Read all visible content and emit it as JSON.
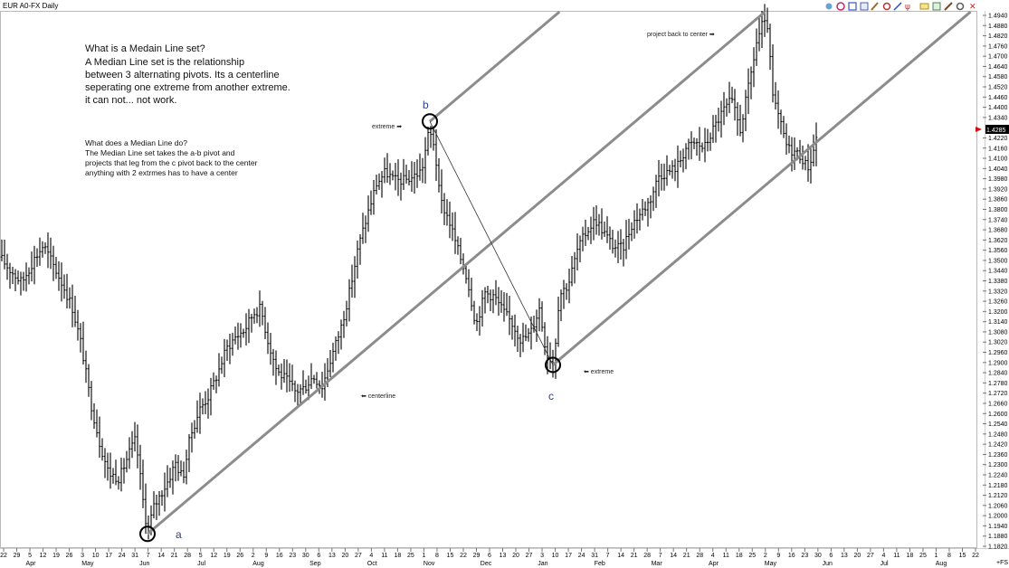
{
  "window": {
    "title": "EUR A0-FX Daily"
  },
  "toolbar": {
    "icons": [
      "cloud-icon",
      "clock-icon",
      "grid-icon",
      "chart-icon",
      "pencil-icon",
      "scissors-icon",
      "trendline-icon",
      "median-line-icon",
      "label-icon",
      "image-icon",
      "pencil-alt-icon",
      "gear-icon",
      "close-icon"
    ]
  },
  "colors": {
    "bars": "#000000",
    "median_lines": "#8c8c8c",
    "pivot_labels": "#2a3f8f",
    "last_price_bg": "#000000",
    "last_price_marker": "#d01010"
  },
  "notes": {
    "block1": [
      "What is a Medain Line set?",
      "A Median Line set is the relationship",
      "between 3 alternating pivots. Its a centerline",
      "seperating one extreme from another extreme.",
      "it can not... not work."
    ],
    "block2": [
      "What does a Median Line do?",
      "The Median Line set takes the a-b pivot and",
      "projects that leg from the c pivot back to the center",
      "anything with 2 extrmes has to have a center"
    ]
  },
  "annotations": {
    "extreme_b": "extreme ➡",
    "centerline": "⬅ centerline",
    "extreme_c": "⬅ extreme",
    "project": "project back to center ➡"
  },
  "corner": {
    "lower_right": "+FS"
  },
  "chart_data": {
    "type": "ohlc-bar",
    "instrument": "EUR A0-FX",
    "timeframe": "Daily",
    "y_axis": {
      "range": [
        1.182,
        1.494
      ],
      "ticks": [
        "1.4940",
        "1.4880",
        "1.4820",
        "1.4760",
        "1.4700",
        "1.4640",
        "1.4580",
        "1.4520",
        "1.4460",
        "1.4400",
        "1.4340",
        "1.4220",
        "1.4160",
        "1.4100",
        "1.4040",
        "1.3980",
        "1.3920",
        "1.3860",
        "1.3800",
        "1.3740",
        "1.3680",
        "1.3620",
        "1.3560",
        "1.3500",
        "1.3440",
        "1.3380",
        "1.3320",
        "1.3260",
        "1.3200",
        "1.3140",
        "1.3080",
        "1.3020",
        "1.2960",
        "1.2900",
        "1.2840",
        "1.2780",
        "1.2720",
        "1.2660",
        "1.2600",
        "1.2540",
        "1.2480",
        "1.2420",
        "1.2360",
        "1.2300",
        "1.2240",
        "1.2180",
        "1.2120",
        "1.2060",
        "1.2000",
        "1.1940",
        "1.1880",
        "1.1820"
      ],
      "last_price": "1.4285"
    },
    "x_axis": {
      "day_labels": [
        "22",
        "29",
        "5",
        "12",
        "19",
        "26",
        "3",
        "10",
        "17",
        "24",
        "31",
        "7",
        "14",
        "21",
        "28",
        "5",
        "12",
        "19",
        "26",
        "2",
        "9",
        "16",
        "23",
        "30",
        "6",
        "13",
        "20",
        "27",
        "4",
        "11",
        "18",
        "25",
        "1",
        "8",
        "15",
        "22",
        "29",
        "6",
        "13",
        "20",
        "27",
        "3",
        "10",
        "17",
        "24",
        "31",
        "7",
        "14",
        "21",
        "28",
        "7",
        "14",
        "21",
        "28",
        "4",
        "11",
        "18",
        "25",
        "2",
        "9",
        "16",
        "23",
        "30",
        "6",
        "13",
        "20",
        "27",
        "4",
        "11",
        "18",
        "25",
        "1",
        "8",
        "15",
        "22"
      ],
      "month_labels": [
        "Apr",
        "May",
        "Jun",
        "Jul",
        "Aug",
        "Sep",
        "Oct",
        "Nov",
        "Dec",
        "Jan",
        "Feb",
        "Mar",
        "Apr",
        "May",
        "Jun",
        "Jul",
        "Aug"
      ]
    },
    "price_path": [
      [
        0,
        1.352
      ],
      [
        10,
        1.345
      ],
      [
        24,
        1.337
      ],
      [
        38,
        1.351
      ],
      [
        48,
        1.359
      ],
      [
        60,
        1.346
      ],
      [
        70,
        1.335
      ],
      [
        80,
        1.322
      ],
      [
        90,
        1.3
      ],
      [
        100,
        1.267
      ],
      [
        110,
        1.243
      ],
      [
        120,
        1.225
      ],
      [
        132,
        1.222
      ],
      [
        142,
        1.236
      ],
      [
        150,
        1.245
      ],
      [
        158,
        1.209
      ],
      [
        163,
        1.191
      ],
      [
        170,
        1.205
      ],
      [
        178,
        1.213
      ],
      [
        186,
        1.221
      ],
      [
        194,
        1.231
      ],
      [
        202,
        1.222
      ],
      [
        210,
        1.246
      ],
      [
        220,
        1.262
      ],
      [
        230,
        1.27
      ],
      [
        240,
        1.283
      ],
      [
        250,
        1.298
      ],
      [
        260,
        1.305
      ],
      [
        270,
        1.309
      ],
      [
        280,
        1.319
      ],
      [
        288,
        1.322
      ],
      [
        296,
        1.303
      ],
      [
        306,
        1.285
      ],
      [
        316,
        1.28
      ],
      [
        326,
        1.273
      ],
      [
        336,
        1.275
      ],
      [
        346,
        1.282
      ],
      [
        356,
        1.276
      ],
      [
        366,
        1.293
      ],
      [
        376,
        1.309
      ],
      [
        386,
        1.331
      ],
      [
        396,
        1.358
      ],
      [
        406,
        1.377
      ],
      [
        416,
        1.395
      ],
      [
        426,
        1.402
      ],
      [
        436,
        1.397
      ],
      [
        446,
        1.397
      ],
      [
        456,
        1.399
      ],
      [
        466,
        1.403
      ],
      [
        474,
        1.426
      ],
      [
        480,
        1.418
      ],
      [
        486,
        1.386
      ],
      [
        496,
        1.374
      ],
      [
        506,
        1.356
      ],
      [
        516,
        1.34
      ],
      [
        526,
        1.312
      ],
      [
        536,
        1.331
      ],
      [
        546,
        1.329
      ],
      [
        556,
        1.32
      ],
      [
        566,
        1.313
      ],
      [
        576,
        1.303
      ],
      [
        586,
        1.307
      ],
      [
        596,
        1.322
      ],
      [
        604,
        1.295
      ],
      [
        612,
        1.29
      ],
      [
        618,
        1.33
      ],
      [
        628,
        1.336
      ],
      [
        638,
        1.356
      ],
      [
        648,
        1.367
      ],
      [
        658,
        1.374
      ],
      [
        668,
        1.366
      ],
      [
        678,
        1.358
      ],
      [
        688,
        1.357
      ],
      [
        698,
        1.371
      ],
      [
        708,
        1.378
      ],
      [
        718,
        1.385
      ],
      [
        728,
        1.4
      ],
      [
        738,
        1.402
      ],
      [
        748,
        1.405
      ],
      [
        758,
        1.416
      ],
      [
        768,
        1.419
      ],
      [
        778,
        1.416
      ],
      [
        788,
        1.427
      ],
      [
        798,
        1.437
      ],
      [
        808,
        1.444
      ],
      [
        818,
        1.427
      ],
      [
        828,
        1.454
      ],
      [
        836,
        1.478
      ],
      [
        842,
        1.488
      ],
      [
        848,
        1.488
      ],
      [
        854,
        1.446
      ],
      [
        862,
        1.431
      ],
      [
        870,
        1.416
      ],
      [
        878,
        1.414
      ],
      [
        886,
        1.411
      ],
      [
        892,
        1.404
      ],
      [
        898,
        1.412
      ],
      [
        904,
        1.428
      ]
    ],
    "median_line": {
      "pivots": {
        "a": [
          163,
          1.1893
        ],
        "b": [
          475,
          1.4317
        ],
        "c": [
          611,
          1.2886
        ]
      },
      "labels": {
        "a": "a",
        "b": "b",
        "c": "c"
      },
      "lines": [
        "upper-parallel",
        "centerline",
        "lower-parallel"
      ]
    }
  }
}
